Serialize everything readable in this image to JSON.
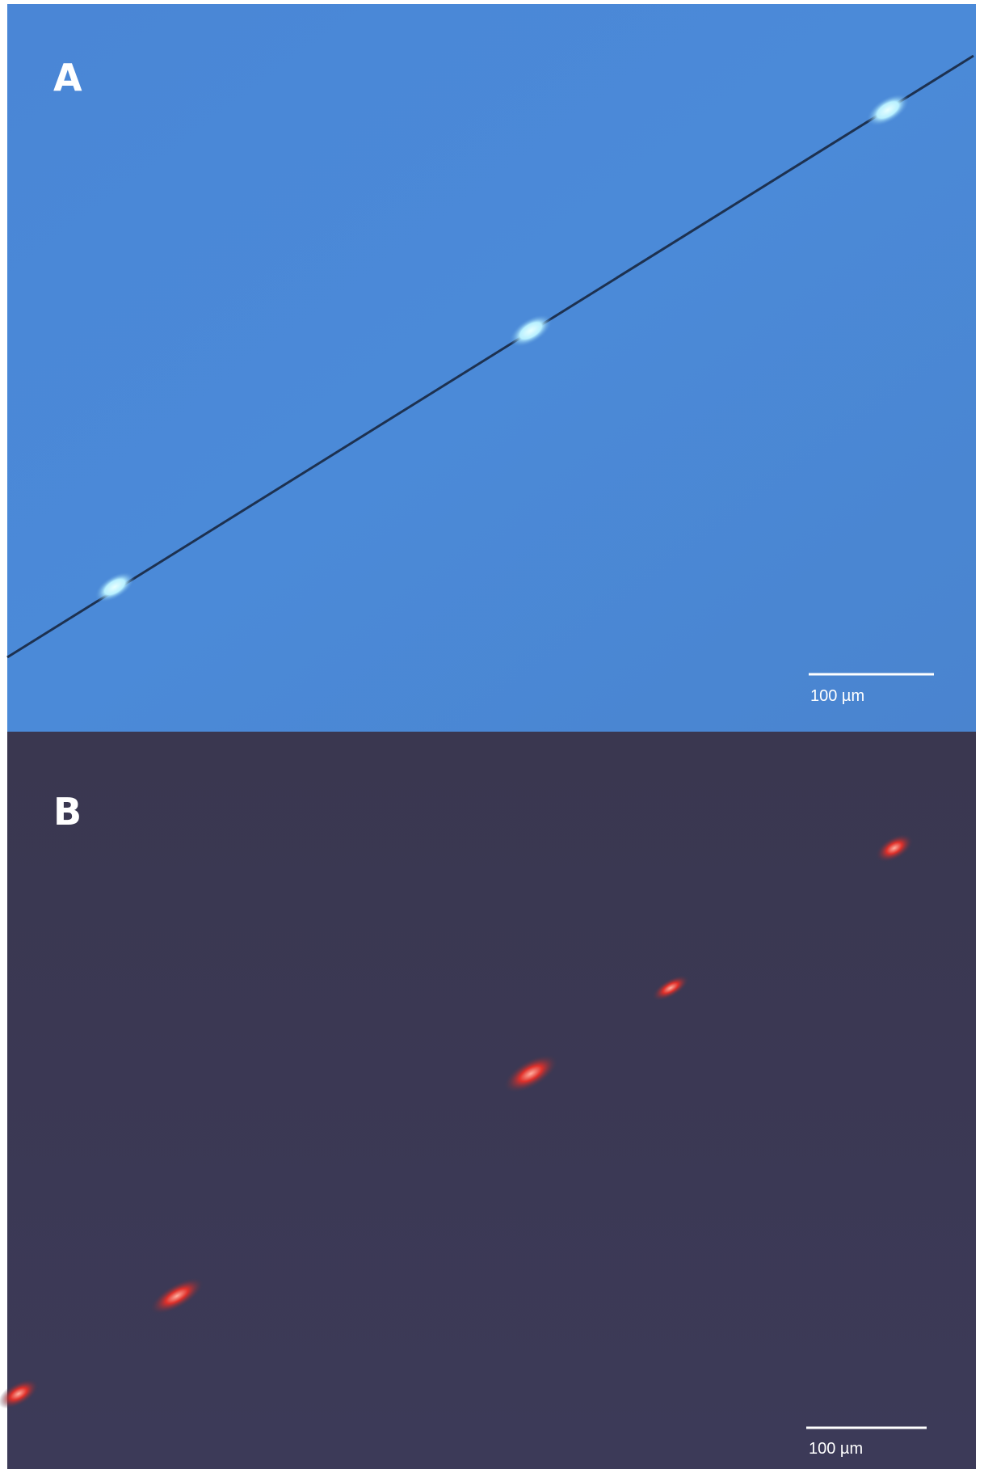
{
  "panels": [
    {
      "label": "A",
      "scale_bar": "100 µm"
    },
    {
      "label": "B",
      "scale_bar": "100 µm"
    }
  ]
}
